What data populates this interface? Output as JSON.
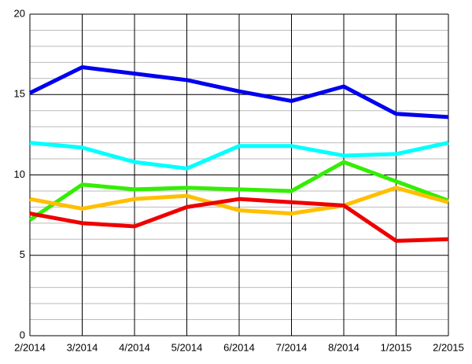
{
  "chart_data": {
    "type": "line",
    "categories": [
      "2/2014",
      "3/2014",
      "4/2014",
      "5/2014",
      "6/2014",
      "7/2014",
      "8/2014",
      "1/2015",
      "2/2015"
    ],
    "series": [
      {
        "color": "#0000ee",
        "values": [
          15.1,
          16.7,
          16.3,
          15.9,
          15.2,
          14.6,
          15.5,
          13.8,
          13.6
        ]
      },
      {
        "color": "#00ffff",
        "values": [
          12.0,
          11.7,
          10.8,
          10.4,
          11.8,
          11.8,
          11.2,
          11.3,
          12.0
        ]
      },
      {
        "color": "#33ee00",
        "values": [
          7.2,
          9.4,
          9.1,
          9.2,
          9.1,
          9.0,
          10.8,
          9.6,
          8.4
        ]
      },
      {
        "color": "#ffbf00",
        "values": [
          8.5,
          7.9,
          8.5,
          8.7,
          7.8,
          7.6,
          8.1,
          9.2,
          8.3
        ]
      },
      {
        "color": "#ee0000",
        "values": [
          7.6,
          7.0,
          6.8,
          8.0,
          8.5,
          8.3,
          8.1,
          5.9,
          6.0
        ]
      }
    ],
    "ylim": [
      0,
      20
    ],
    "yticks": [
      0,
      5,
      10,
      15,
      20
    ],
    "minor_yticks": [
      1,
      2,
      3,
      4,
      6,
      7,
      8,
      9,
      11,
      12,
      13,
      14,
      16,
      17,
      18,
      19
    ],
    "grid": true
  }
}
